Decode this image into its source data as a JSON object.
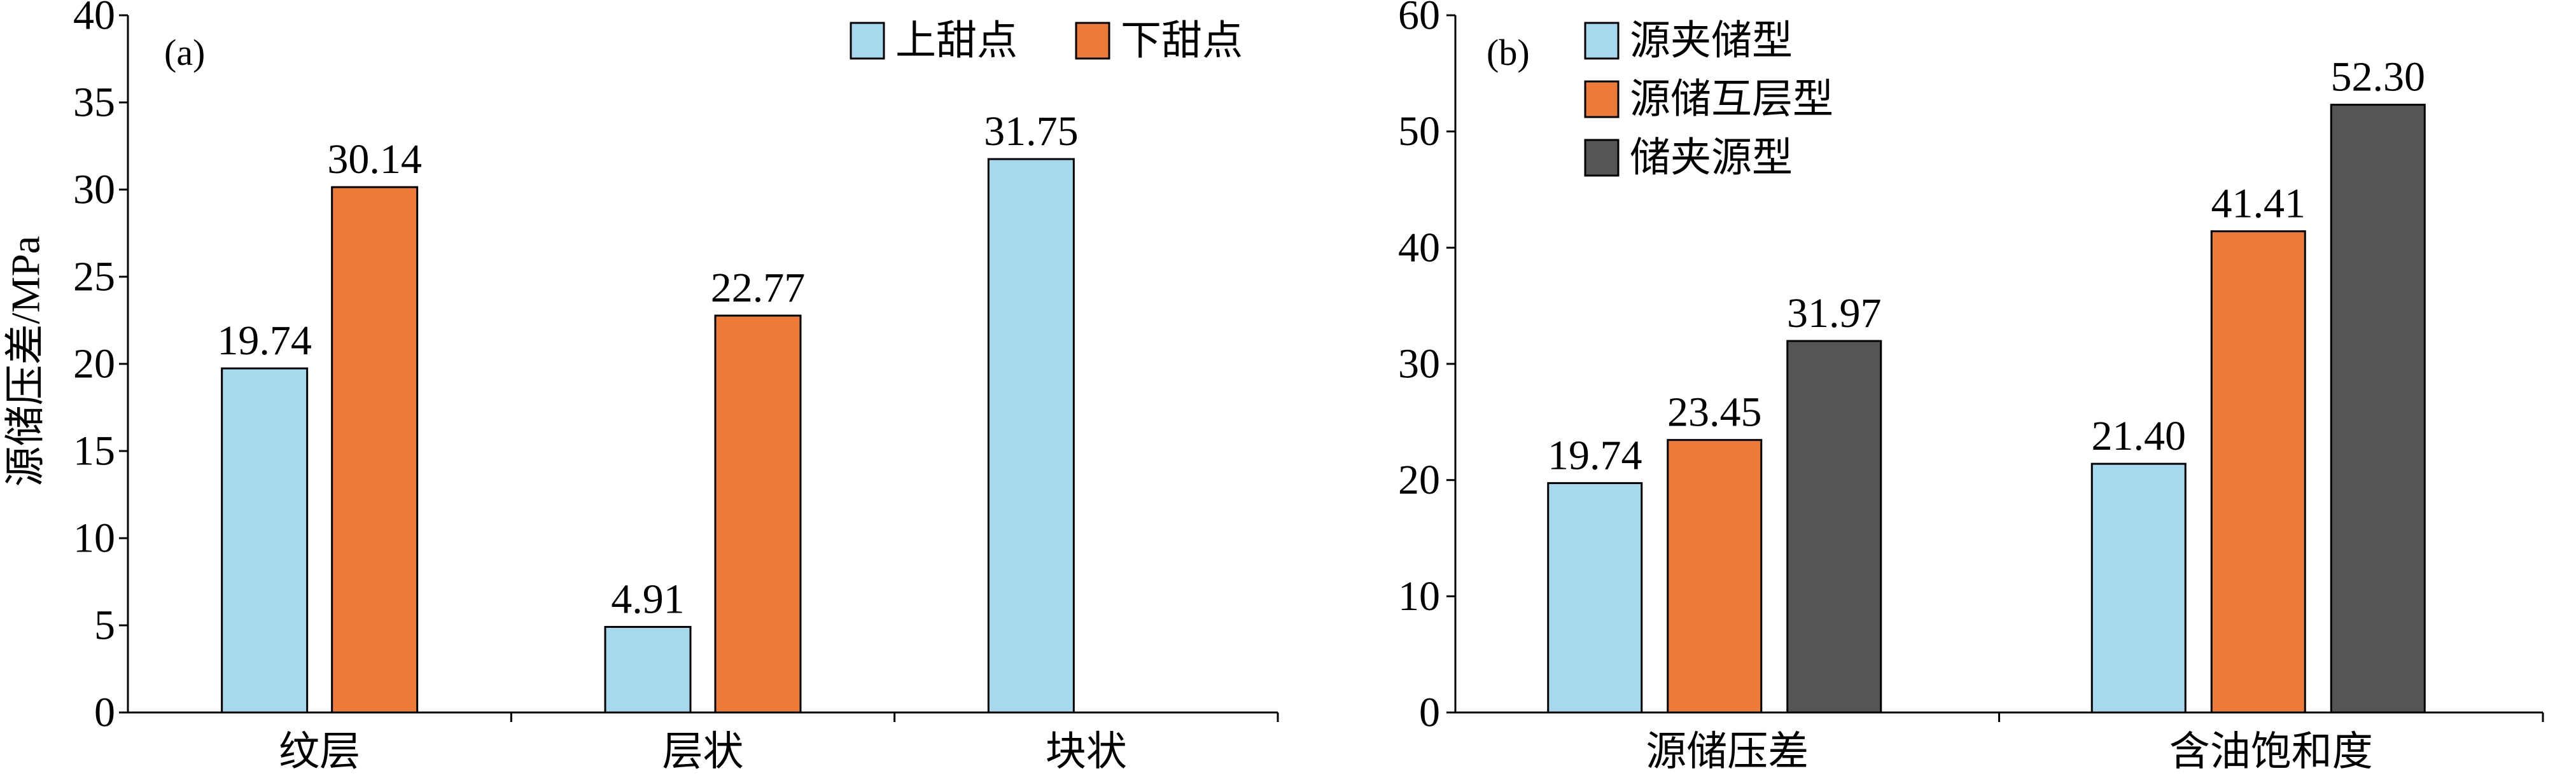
{
  "chart_data": [
    {
      "type": "bar",
      "panel_label": "(a)",
      "ylabel": "源储压差/MPa",
      "xlabel": "",
      "categories": [
        "纹层",
        "层状",
        "块状"
      ],
      "series": [
        {
          "name": "上甜点",
          "values": [
            19.74,
            4.91,
            31.75
          ],
          "color": "#a6d8ee"
        },
        {
          "name": "下甜点",
          "values": [
            30.14,
            22.77,
            null
          ],
          "color": "#ee7a3a"
        }
      ],
      "ylim": [
        0,
        40
      ],
      "yticks": [
        0,
        5,
        10,
        15,
        20,
        25,
        30,
        35,
        40
      ],
      "data_labels": true,
      "grid": false,
      "legend": "top-right"
    },
    {
      "type": "bar",
      "panel_label": "(b)",
      "ylabel": "",
      "xlabel": "",
      "categories": [
        "源储压差",
        "含油饱和度"
      ],
      "series": [
        {
          "name": "源夹储型",
          "values": [
            19.74,
            21.4
          ],
          "color": "#a6d8ee"
        },
        {
          "name": "源储互层型",
          "values": [
            23.45,
            41.41
          ],
          "color": "#ee7a3a"
        },
        {
          "name": "储夹源型",
          "values": [
            31.97,
            52.3
          ],
          "color": "#555555"
        }
      ],
      "ylim": [
        0,
        60
      ],
      "yticks": [
        0,
        10,
        20,
        30,
        40,
        50,
        60
      ],
      "data_labels": true,
      "grid": false,
      "legend": "top-left"
    }
  ]
}
